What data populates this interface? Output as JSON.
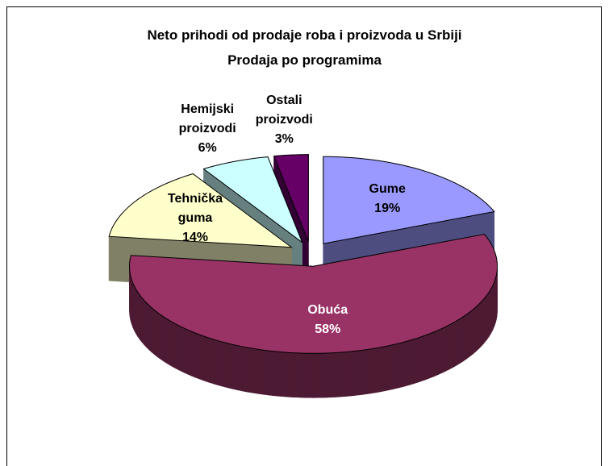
{
  "chart_data": {
    "type": "pie",
    "title": "Neto prihodi od prodaje roba i proizvoda u Srbiji",
    "subtitle": "Prodaja po programima",
    "categories": [
      "Gume",
      "Obuća",
      "Tehnička guma",
      "Hemijski proizvodi",
      "Ostali proizvodi"
    ],
    "values": [
      19,
      58,
      14,
      6,
      3
    ],
    "value_labels": [
      "19%",
      "58%",
      "14%",
      "6%",
      "3%"
    ],
    "colors": [
      "#9999ff",
      "#993366",
      "#ffffcc",
      "#ccffff",
      "#660066"
    ]
  }
}
